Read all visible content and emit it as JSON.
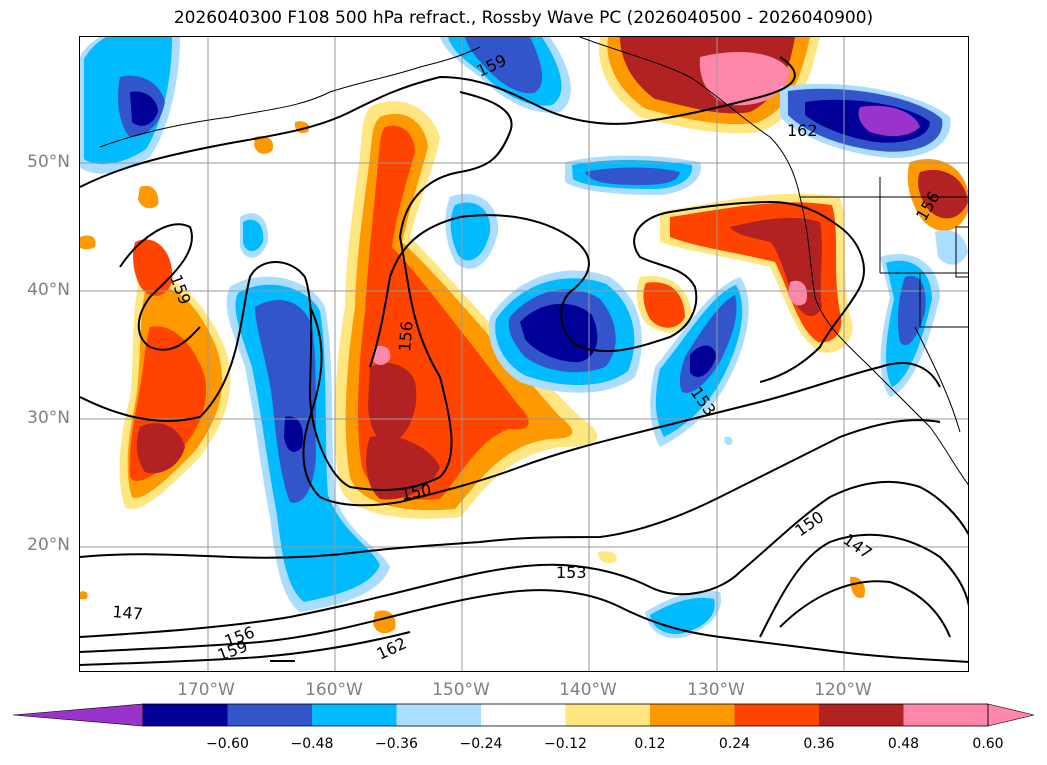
{
  "title": "2026040300 F108 500 hPa refract., Rossby Wave PC (2026040500 - 2026040900)",
  "latitude_labels": [
    "50°N",
    "40°N",
    "30°N",
    "20°N"
  ],
  "longitude_labels": [
    "170°W",
    "160°W",
    "150°W",
    "140°W",
    "130°W",
    "120°W"
  ],
  "contour_labels": [
    "159",
    "162",
    "159",
    "156",
    "156",
    "153",
    "150",
    "150",
    "147",
    "153",
    "147",
    "156",
    "159",
    "162"
  ],
  "colorbar": {
    "tick_labels": [
      "−0.60",
      "−0.48",
      "−0.36",
      "−0.24",
      "−0.12",
      "0.12",
      "0.24",
      "0.36",
      "0.48",
      "0.60"
    ],
    "colors": [
      "#9933cc",
      "#000099",
      "#3355cc",
      "#00bbff",
      "#aaddff",
      "#ffffff",
      "#ffe680",
      "#ff9900",
      "#ff4400",
      "#b22222",
      "#ff88aa",
      "#ff88aa"
    ],
    "extend": "both"
  },
  "palette": {
    "pink": "#ff88aa",
    "darkred": "#b22222",
    "red": "#ff4400",
    "orange": "#ff9900",
    "yellow": "#ffe680",
    "lightblue": "#aaddff",
    "cyan": "#00bbff",
    "blue": "#3355cc",
    "navy": "#000099",
    "purple": "#9933cc"
  }
}
